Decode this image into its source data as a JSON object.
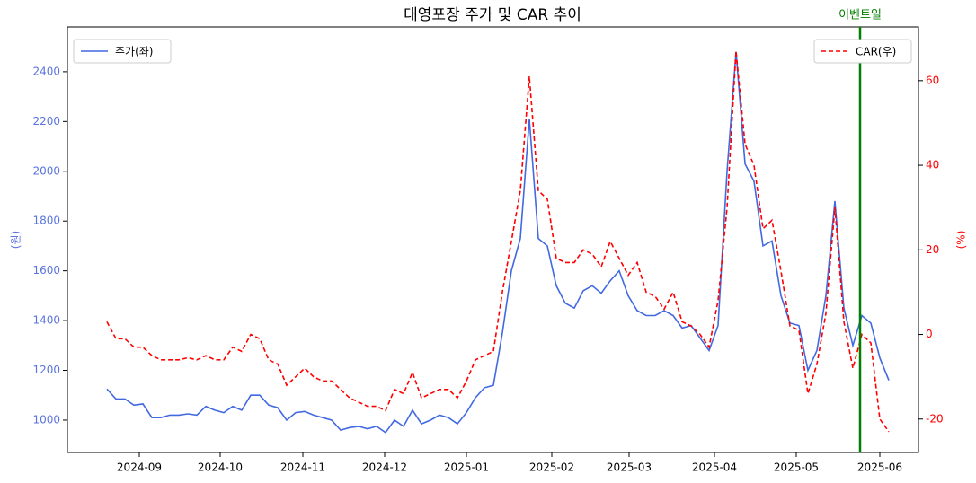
{
  "chart_data": {
    "type": "line",
    "title": "대영포장 주가 및 CAR 추이",
    "ylabel": "(원)",
    "y2label": "(%)",
    "xlim": [
      -4.4,
      90.3
    ],
    "xticks": [
      {
        "value": 3.6,
        "label": "2024-09"
      },
      {
        "value": 12.6,
        "label": "2024-10"
      },
      {
        "value": 21.8,
        "label": "2024-11"
      },
      {
        "value": 30.9,
        "label": "2024-12"
      },
      {
        "value": 40,
        "label": "2025-01"
      },
      {
        "value": 49.5,
        "label": "2025-02"
      },
      {
        "value": 58.1,
        "label": "2025-03"
      },
      {
        "value": 67.6,
        "label": "2025-04"
      },
      {
        "value": 76.7,
        "label": "2025-05"
      },
      {
        "value": 86,
        "label": "2025-06"
      }
    ],
    "ylim": [
      870,
      2580
    ],
    "yticks": [
      1000,
      1200,
      1400,
      1600,
      1800,
      2000,
      2200,
      2400
    ],
    "y2lim": [
      -27.9,
      72.7
    ],
    "y2ticks": [
      -20,
      0,
      20,
      40,
      60
    ],
    "ytick_color": "#5a73e0",
    "y2tick_color": "#ff0000",
    "series": [
      {
        "name": "주가(좌)",
        "color": "#4169e1",
        "dash": false,
        "legend": "upper left",
        "values": [
          1125,
          1085,
          1085,
          1060,
          1065,
          1010,
          1010,
          1020,
          1020,
          1025,
          1020,
          1055,
          1040,
          1030,
          1055,
          1040,
          1100,
          1100,
          1060,
          1050,
          1000,
          1030,
          1035,
          1020,
          1010,
          1000,
          960,
          970,
          975,
          965,
          975,
          950,
          1000,
          975,
          1040,
          985,
          1000,
          1020,
          1010,
          985,
          1030,
          1090,
          1130,
          1140,
          1350,
          1600,
          1730,
          2210,
          1730,
          1700,
          1540,
          1470,
          1450,
          1520,
          1540,
          1510,
          1560,
          1600,
          1500,
          1440,
          1420,
          1420,
          1440,
          1420,
          1370,
          1380,
          1330,
          1280,
          1380,
          2000,
          2480,
          2030,
          1960,
          1700,
          1720,
          1500,
          1390,
          1380,
          1200,
          1280,
          1500,
          1880,
          1450,
          1300,
          1420,
          1390,
          1250,
          1160
        ]
      },
      {
        "name": "CAR(우)",
        "color": "#ff0000",
        "dash": true,
        "axis": "y2",
        "legend": "upper right",
        "values": [
          3,
          -1,
          -1,
          -3,
          -3,
          -5,
          -6,
          -6,
          -6,
          -5.5,
          -6,
          -5,
          -6,
          -6,
          -3,
          -4,
          0,
          -1,
          -6,
          -7,
          -12,
          -10,
          -8,
          -10,
          -11,
          -11,
          -13,
          -15,
          -16,
          -17,
          -17,
          -18,
          -13,
          -14,
          -9,
          -15,
          -14,
          -13,
          -13,
          -15,
          -11,
          -6,
          -5,
          -4,
          10,
          22,
          34,
          61,
          34,
          32,
          18,
          17,
          17,
          20,
          19,
          16,
          22,
          18,
          14,
          17,
          10,
          9,
          6,
          10,
          3,
          2,
          0,
          -3,
          8,
          30,
          67,
          45,
          40,
          25,
          27,
          15,
          2,
          1,
          -14,
          -7,
          5,
          30,
          3,
          -8,
          0,
          -2,
          -20,
          -23
        ]
      }
    ],
    "event": {
      "label": "이벤트일",
      "x": 83.8,
      "color": "#008000"
    }
  }
}
